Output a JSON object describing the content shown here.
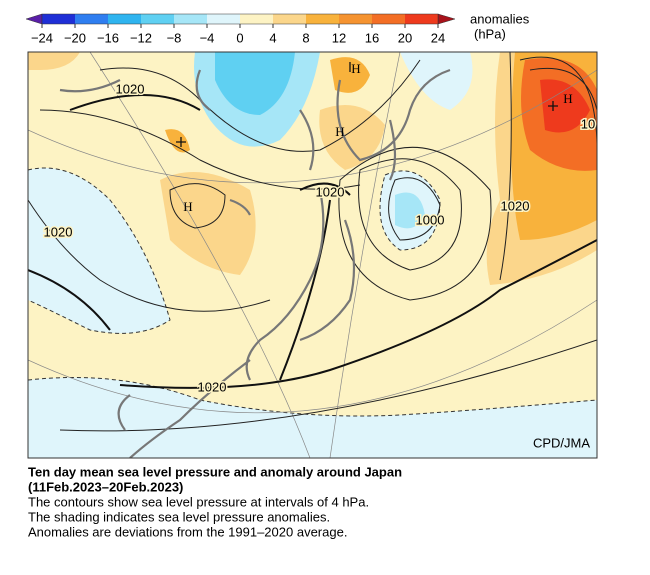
{
  "colorbar": {
    "ticks": [
      {
        "value": -24,
        "label": "−24"
      },
      {
        "value": -20,
        "label": "−20"
      },
      {
        "value": -16,
        "label": "−16"
      },
      {
        "value": -12,
        "label": "−12"
      },
      {
        "value": -8,
        "label": "−8"
      },
      {
        "value": -4,
        "label": "−4"
      },
      0,
      4,
      8,
      12,
      16,
      20,
      24
    ],
    "colors": [
      "#1f2fd6",
      "#2f7ef0",
      "#2fb4ef",
      "#5fd0f2",
      "#a6e6f7",
      "#dff5fb",
      "#fdf3c4",
      "#fbd68b",
      "#f8b23c",
      "#f59330",
      "#f36e25",
      "#ee3a1d"
    ],
    "under_color": "#5a1fa8",
    "over_color": "#a8121a",
    "title": "anomalies",
    "unit": "(hPa)"
  },
  "map_labels": [
    "H",
    "H",
    "H",
    "H",
    "1020",
    "1020",
    "1020",
    "1020",
    "1020",
    "1000",
    "10"
  ],
  "credit": "CPD/JMA",
  "caption": {
    "title": "Ten day mean sea level pressure and anomaly around Japan",
    "period": "(11Feb.2023–20Feb.2023)",
    "lines": [
      "The contours show sea level pressure at intervals of 4 hPa.",
      "The shading indicates sea level pressure anomalies.",
      "Anomalies are deviations from the 1991–2020 average."
    ]
  }
}
